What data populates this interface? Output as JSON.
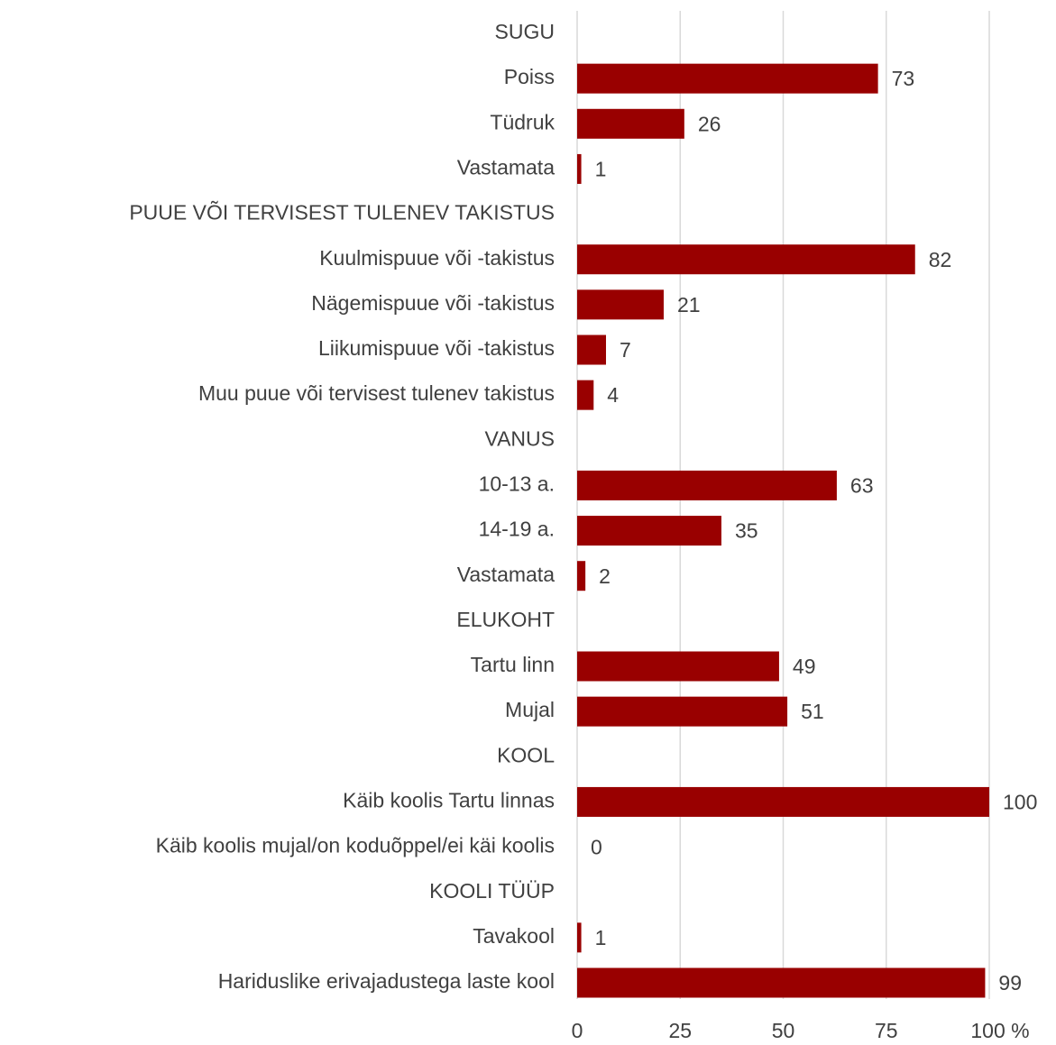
{
  "chart_data": {
    "type": "bar",
    "orientation": "horizontal",
    "categories": [
      "SUGU",
      "Poiss",
      "Tüdruk",
      "Vastamata",
      "PUUE VÕI TERVISEST TULENEV TAKISTUS",
      "Kuulmispuue või -takistus",
      "Nägemispuue või -takistus",
      "Liikumispuue või -takistus",
      "Muu puue või tervisest tulenev takistus",
      "VANUS",
      "10-13 a.",
      "14-19 a.",
      "Vastamata",
      "ELUKOHT",
      "Tartu linn",
      "Mujal",
      "KOOL",
      "Käib koolis Tartu linnas",
      "Käib koolis mujal/on koduõppel/ei käi koolis",
      "KOOLI TÜÜP",
      "Tavakool",
      "Hariduslike erivajadustega laste kool"
    ],
    "values": [
      null,
      73,
      26,
      1,
      null,
      82,
      21,
      7,
      4,
      null,
      63,
      35,
      2,
      null,
      49,
      51,
      null,
      100,
      0,
      null,
      1,
      99
    ],
    "color": "#990000",
    "xlim": [
      0,
      100
    ],
    "xticks": [
      0,
      25,
      50,
      75,
      {
        "value": 100,
        "label": "100 %"
      }
    ],
    "grid": true
  }
}
